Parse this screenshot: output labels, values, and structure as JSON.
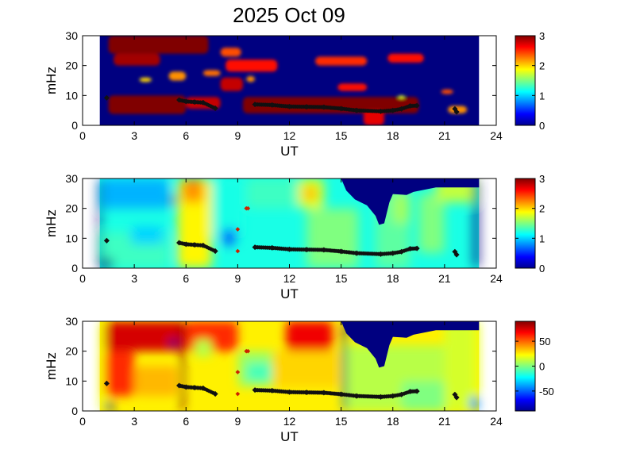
{
  "figure": {
    "title": "2025 Oct 09"
  },
  "colors": {
    "background": "#ffffff",
    "axis": "#000000",
    "ridge_marker": "#111111",
    "red_marker": "#cc2200"
  },
  "chart_data": [
    {
      "type": "heatmap",
      "xlabel": "UT",
      "ylabel": "mHz",
      "xlim": [
        0,
        24
      ],
      "ylim": [
        0,
        30
      ],
      "xticks": [
        0,
        3,
        6,
        9,
        12,
        15,
        18,
        21,
        24
      ],
      "yticks": [
        0,
        10,
        20,
        30
      ],
      "data_extent_x": [
        1,
        23
      ],
      "colorbar": {
        "range": [
          0,
          3
        ],
        "ticks": [
          0,
          1,
          2,
          3
        ],
        "colormap": "jet"
      },
      "background_value": 0,
      "regions": [
        {
          "x": [
            1.5,
            6.0
          ],
          "y": [
            3.8,
            10.0
          ],
          "v": 3.0
        },
        {
          "x": [
            6.0,
            8.0
          ],
          "y": [
            5.5,
            9.5
          ],
          "v": 2.8
        },
        {
          "x": [
            9.3,
            19.5
          ],
          "y": [
            4.0,
            9.5
          ],
          "v": 3.0
        },
        {
          "x": [
            16.3,
            17.5
          ],
          "y": [
            0,
            5
          ],
          "v": 2.7
        },
        {
          "x": [
            1.5,
            7.3
          ],
          "y": [
            24,
            30
          ],
          "v": 3.0
        },
        {
          "x": [
            1.8,
            4.5
          ],
          "y": [
            20,
            24
          ],
          "v": 2.9
        },
        {
          "x": [
            8.3,
            11.3
          ],
          "y": [
            18,
            22
          ],
          "v": 2.6
        },
        {
          "x": [
            8.0,
            9.2
          ],
          "y": [
            23,
            26
          ],
          "v": 2.4
        },
        {
          "x": [
            8.0,
            9.3
          ],
          "y": [
            11.5,
            16
          ],
          "v": 2.8
        },
        {
          "x": [
            13.5,
            16.5
          ],
          "y": [
            20,
            23
          ],
          "v": 2.5
        },
        {
          "x": [
            14.8,
            16.5
          ],
          "y": [
            11.5,
            14
          ],
          "v": 2.6
        },
        {
          "x": [
            17.7,
            19.8
          ],
          "y": [
            21,
            24
          ],
          "v": 2.6
        },
        {
          "x": [
            5.0,
            6.0
          ],
          "y": [
            15,
            18
          ],
          "v": 2.2
        },
        {
          "x": [
            7.0,
            8.0
          ],
          "y": [
            16.5,
            18.5
          ],
          "v": 2.3
        },
        {
          "x": [
            20.8,
            21.5
          ],
          "y": [
            10.5,
            12
          ],
          "v": 2.4
        },
        {
          "x": [
            21.2,
            22.3
          ],
          "y": [
            4,
            6.5
          ],
          "v": 2.2
        },
        {
          "x": [
            3.3,
            4.0
          ],
          "y": [
            14.5,
            16
          ],
          "v": 2.0
        },
        {
          "x": [
            9.5,
            10.0
          ],
          "y": [
            14.5,
            16.5
          ],
          "v": 2.2
        },
        {
          "x": [
            18.3,
            18.7
          ],
          "y": [
            9,
            10
          ],
          "v": 1.8
        }
      ],
      "ridge": [
        [
          1.4,
          9.2
        ],
        [
          5.6,
          8.5
        ],
        [
          6.0,
          8.0
        ],
        [
          6.5,
          7.8
        ],
        [
          7.0,
          7.6
        ],
        [
          7.7,
          5.7
        ],
        [
          10.0,
          7.0
        ],
        [
          11.0,
          6.8
        ],
        [
          12.0,
          6.3
        ],
        [
          13.0,
          6.2
        ],
        [
          14.0,
          6.1
        ],
        [
          15.0,
          5.6
        ],
        [
          15.9,
          5.0
        ],
        [
          17.3,
          4.7
        ],
        [
          18.0,
          5.0
        ],
        [
          18.5,
          5.5
        ],
        [
          19.0,
          6.5
        ],
        [
          19.4,
          6.6
        ],
        [
          21.6,
          5.5
        ],
        [
          21.7,
          4.5
        ]
      ],
      "red_points": []
    },
    {
      "type": "heatmap",
      "xlabel": "UT",
      "ylabel": "mHz",
      "xlim": [
        0,
        24
      ],
      "ylim": [
        0,
        30
      ],
      "xticks": [
        0,
        3,
        6,
        9,
        12,
        15,
        18,
        21,
        24
      ],
      "yticks": [
        0,
        10,
        20,
        30
      ],
      "data_extent_x": [
        1,
        23
      ],
      "colorbar": {
        "range": [
          0,
          3
        ],
        "ticks": [
          0,
          1,
          2,
          3
        ],
        "colormap": "jet"
      },
      "background_value": 1.2,
      "regions": [
        {
          "x": [
            1,
            5
          ],
          "y": [
            20,
            30
          ],
          "v": 0.9
        },
        {
          "x": [
            1,
            5
          ],
          "y": [
            0,
            12
          ],
          "v": 1.3
        },
        {
          "x": [
            2.8,
            4.7
          ],
          "y": [
            8,
            14
          ],
          "v": 1.0
        },
        {
          "x": [
            5.5,
            7.5
          ],
          "y": [
            0,
            30
          ],
          "v": 1.9
        },
        {
          "x": [
            5.8,
            7.0
          ],
          "y": [
            22,
            30
          ],
          "v": 2.2
        },
        {
          "x": [
            7.5,
            9.3
          ],
          "y": [
            10,
            30
          ],
          "v": 1.2
        },
        {
          "x": [
            8.1,
            8.9
          ],
          "y": [
            8,
            13
          ],
          "v": 0.5
        },
        {
          "x": [
            9.5,
            12.5
          ],
          "y": [
            20,
            30
          ],
          "v": 1.3
        },
        {
          "x": [
            12.5,
            14.0
          ],
          "y": [
            20,
            30
          ],
          "v": 1.8
        },
        {
          "x": [
            12.8,
            13.6
          ],
          "y": [
            23,
            27
          ],
          "v": 2.1
        },
        {
          "x": [
            13.0,
            16.0
          ],
          "y": [
            0,
            20
          ],
          "v": 1.5
        },
        {
          "x": [
            17.0,
            19.0
          ],
          "y": [
            0,
            30
          ],
          "v": 1.4
        },
        {
          "x": [
            18.0,
            19.0
          ],
          "y": [
            15,
            25
          ],
          "v": 1.6
        },
        {
          "x": [
            19.5,
            21.0
          ],
          "y": [
            5,
            25
          ],
          "v": 1.5
        },
        {
          "x": [
            20.5,
            23.0
          ],
          "y": [
            22,
            30
          ],
          "v": 1.7
        },
        {
          "x": [
            0.9,
            1.1
          ],
          "y": [
            0,
            30
          ],
          "v": 0.0
        },
        {
          "x": [
            1.0,
            1.8
          ],
          "y": [
            0,
            3
          ],
          "v": 0.0
        },
        {
          "x": [
            5.0,
            5.5
          ],
          "y": [
            21.5,
            24
          ],
          "v": 0.0
        },
        {
          "x": [
            22.7,
            23.0
          ],
          "y": [
            0,
            30
          ],
          "v": 0.0
        }
      ],
      "blank_region": [
        [
          15.0,
          30
        ],
        [
          23.0,
          30
        ],
        [
          23.0,
          27
        ],
        [
          20.5,
          27
        ],
        [
          19.2,
          25.5
        ],
        [
          18.8,
          24.5
        ],
        [
          18.0,
          24.8
        ],
        [
          17.8,
          22
        ],
        [
          17.5,
          15
        ],
        [
          17.2,
          14.5
        ],
        [
          17.0,
          17.5
        ],
        [
          16.5,
          21
        ],
        [
          15.8,
          23
        ],
        [
          15.3,
          26
        ],
        [
          15.0,
          30
        ]
      ],
      "ridge": [
        [
          1.4,
          9.2
        ],
        [
          5.6,
          8.5
        ],
        [
          6.0,
          8.0
        ],
        [
          6.5,
          7.8
        ],
        [
          7.0,
          7.6
        ],
        [
          7.7,
          5.7
        ],
        [
          10.0,
          7.0
        ],
        [
          11.0,
          6.8
        ],
        [
          12.0,
          6.3
        ],
        [
          13.0,
          6.2
        ],
        [
          14.0,
          6.1
        ],
        [
          15.0,
          5.6
        ],
        [
          15.9,
          5.0
        ],
        [
          17.3,
          4.7
        ],
        [
          18.0,
          5.0
        ],
        [
          18.5,
          5.5
        ],
        [
          19.0,
          6.5
        ],
        [
          19.4,
          6.6
        ],
        [
          21.6,
          5.5
        ],
        [
          21.7,
          4.5
        ]
      ],
      "red_points": [
        [
          9.0,
          13
        ],
        [
          9.0,
          5.7
        ],
        [
          9.5,
          20
        ],
        [
          9.6,
          20
        ]
      ]
    },
    {
      "type": "heatmap",
      "xlabel": "UT",
      "ylabel": "mHz",
      "xlim": [
        0,
        24
      ],
      "ylim": [
        0,
        30
      ],
      "xticks": [
        0,
        3,
        6,
        9,
        12,
        15,
        18,
        21,
        24
      ],
      "yticks": [
        0,
        10,
        20,
        30
      ],
      "data_extent_x": [
        1,
        23
      ],
      "colorbar": {
        "range": [
          -90,
          90
        ],
        "ticks": [
          50,
          0,
          -50
        ],
        "colormap": "jet"
      },
      "background_value": 25,
      "regions": [
        {
          "x": [
            1.3,
            6.0
          ],
          "y": [
            20,
            30
          ],
          "v": 75
        },
        {
          "x": [
            1.3,
            3.0
          ],
          "y": [
            5,
            20
          ],
          "v": 60
        },
        {
          "x": [
            3.0,
            5.5
          ],
          "y": [
            5,
            15
          ],
          "v": 35
        },
        {
          "x": [
            6.0,
            9.0
          ],
          "y": [
            20,
            30
          ],
          "v": 60
        },
        {
          "x": [
            6.5,
            7.5
          ],
          "y": [
            18,
            24
          ],
          "v": 10
        },
        {
          "x": [
            9.0,
            11.5
          ],
          "y": [
            8,
            20
          ],
          "v": 5
        },
        {
          "x": [
            9.5,
            11.0
          ],
          "y": [
            10,
            16
          ],
          "v": -10
        },
        {
          "x": [
            11.8,
            14.5
          ],
          "y": [
            20,
            30
          ],
          "v": 70
        },
        {
          "x": [
            11.0,
            15.0
          ],
          "y": [
            8,
            20
          ],
          "v": 30
        },
        {
          "x": [
            15.0,
            23.0
          ],
          "y": [
            0,
            22
          ],
          "v": 10
        },
        {
          "x": [
            18.5,
            21.0
          ],
          "y": [
            0,
            10
          ],
          "v": 0
        },
        {
          "x": [
            21.0,
            23.0
          ],
          "y": [
            0,
            30
          ],
          "v": 15
        },
        {
          "x": [
            5.7,
            5.9
          ],
          "y": [
            0,
            30
          ],
          "v": 90
        },
        {
          "x": [
            15.1,
            15.3
          ],
          "y": [
            0,
            30
          ],
          "v": -90
        },
        {
          "x": [
            1.0,
            1.3
          ],
          "y": [
            0,
            30
          ],
          "v": 20
        },
        {
          "x": [
            22.7,
            23.0
          ],
          "y": [
            0,
            30
          ],
          "v": 20
        },
        {
          "x": [
            5.0,
            5.5
          ],
          "y": [
            21.5,
            24
          ],
          "v": -90
        },
        {
          "x": [
            1.3,
            1.8
          ],
          "y": [
            0,
            3
          ],
          "v": -90
        },
        {
          "x": [
            22.5,
            23.0
          ],
          "y": [
            0,
            5
          ],
          "v": -40
        }
      ],
      "blank_region": [
        [
          15.0,
          30
        ],
        [
          23.0,
          30
        ],
        [
          23.0,
          27
        ],
        [
          20.5,
          27
        ],
        [
          19.2,
          25.5
        ],
        [
          18.8,
          24.5
        ],
        [
          18.0,
          24.8
        ],
        [
          17.8,
          22
        ],
        [
          17.5,
          15
        ],
        [
          17.2,
          14.5
        ],
        [
          17.0,
          17.5
        ],
        [
          16.5,
          21
        ],
        [
          15.8,
          23
        ],
        [
          15.3,
          26
        ],
        [
          15.0,
          30
        ]
      ],
      "ridge": [
        [
          1.4,
          9.2
        ],
        [
          5.6,
          8.5
        ],
        [
          6.0,
          8.0
        ],
        [
          6.5,
          7.8
        ],
        [
          7.0,
          7.6
        ],
        [
          7.7,
          5.7
        ],
        [
          10.0,
          7.0
        ],
        [
          11.0,
          6.8
        ],
        [
          12.0,
          6.3
        ],
        [
          13.0,
          6.2
        ],
        [
          14.0,
          6.1
        ],
        [
          15.0,
          5.6
        ],
        [
          15.9,
          5.0
        ],
        [
          17.3,
          4.7
        ],
        [
          18.0,
          5.0
        ],
        [
          18.5,
          5.5
        ],
        [
          19.0,
          6.5
        ],
        [
          19.4,
          6.6
        ],
        [
          21.6,
          5.5
        ],
        [
          21.7,
          4.5
        ]
      ],
      "red_points": [
        [
          9.0,
          13
        ],
        [
          9.0,
          5.7
        ],
        [
          9.5,
          20
        ],
        [
          9.6,
          20
        ]
      ]
    }
  ]
}
